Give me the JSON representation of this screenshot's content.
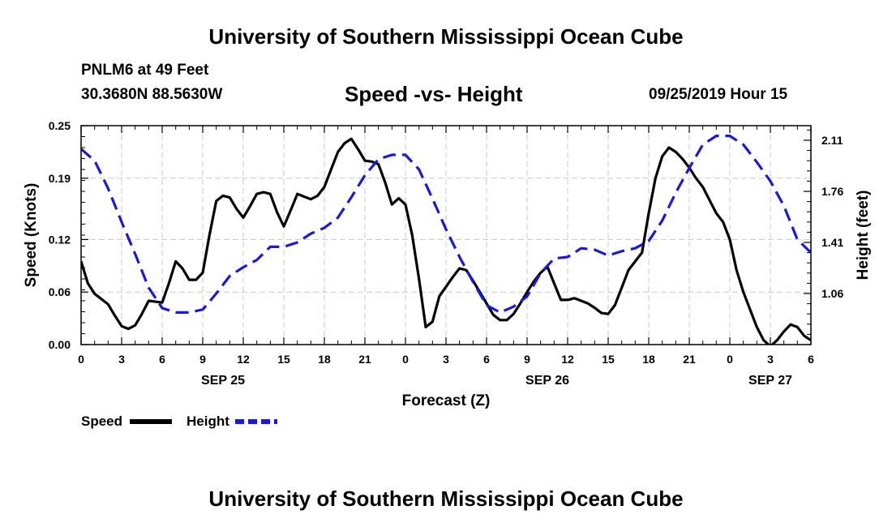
{
  "header": {
    "title_top": "University of Southern Mississippi Ocean Cube",
    "station": "PNLM6 at 49 Feet",
    "coords": "30.3680N 88.5630W",
    "chart_title": "Speed -vs- Height",
    "datetime": "09/25/2019 Hour 15",
    "title_bottom": "University of Southern Mississippi Ocean Cube"
  },
  "colors": {
    "speed": "#000000",
    "height": "#1a1ad6",
    "grid": "#c8c8c8"
  },
  "chart_data": {
    "type": "line",
    "title": "Speed -vs- Height",
    "xlabel": "Forecast (Z)",
    "ylabel_left": "Speed (Knots)",
    "ylabel_right": "Height (feet)",
    "x_range_hours": [
      0,
      54
    ],
    "ylim_left": [
      0,
      0.25
    ],
    "ylim_right": [
      0.71,
      2.21
    ],
    "y_ticks_left": [
      "0.25",
      "0.19",
      "0.12",
      "0.06",
      "0.00"
    ],
    "y_tick_values_left": [
      0.25,
      0.19,
      0.12,
      0.06,
      0.0
    ],
    "y_ticks_right": [
      "2.11",
      "1.76",
      "1.41",
      "1.06"
    ],
    "y_tick_values_right": [
      2.11,
      1.76,
      1.41,
      1.06
    ],
    "x_tick_labels": [
      "0",
      "3",
      "6",
      "9",
      "12",
      "15",
      "18",
      "21",
      "0",
      "3",
      "6",
      "9",
      "12",
      "15",
      "18",
      "21",
      "0",
      "3",
      "6"
    ],
    "date_labels": [
      {
        "label": "SEP 25",
        "hour": 10.5
      },
      {
        "label": "SEP 26",
        "hour": 34.5
      },
      {
        "label": "SEP 27",
        "hour": 51
      }
    ],
    "legend": [
      {
        "name": "Speed",
        "style": "solid"
      },
      {
        "name": "Height",
        "style": "dashed"
      }
    ],
    "series": [
      {
        "name": "Speed",
        "x": [
          0,
          0.5,
          1,
          1.5,
          2,
          2.5,
          3,
          3.5,
          4,
          4.5,
          5,
          5.5,
          6,
          6.5,
          7,
          7.5,
          8,
          8.5,
          9,
          9.5,
          10,
          10.5,
          11,
          11.5,
          12,
          12.5,
          13,
          13.5,
          14,
          14.5,
          15,
          15.5,
          16,
          16.5,
          17,
          17.5,
          18,
          18.5,
          19,
          19.5,
          20,
          20.5,
          21,
          21.5,
          22,
          22.5,
          23,
          23.5,
          24,
          24.5,
          25,
          25.5,
          26,
          26.5,
          27,
          27.5,
          28,
          28.5,
          29,
          29.5,
          30,
          30.5,
          31,
          31.5,
          32,
          32.5,
          33,
          33.5,
          34,
          34.5,
          35,
          35.5,
          36,
          36.5,
          37,
          37.5,
          38,
          38.5,
          39,
          39.5,
          40,
          40.5,
          41,
          41.5,
          42,
          42.5,
          43,
          43.5,
          44,
          44.5,
          45,
          45.5,
          46,
          46.5,
          47,
          47.5,
          48,
          48.5,
          49,
          49.5,
          50,
          50.5,
          51,
          51.5,
          52,
          52.5,
          53,
          53.5,
          54
        ],
        "values": [
          0.095,
          0.07,
          0.058,
          0.052,
          0.046,
          0.033,
          0.021,
          0.018,
          0.022,
          0.035,
          0.05,
          0.049,
          0.048,
          0.07,
          0.095,
          0.087,
          0.074,
          0.074,
          0.082,
          0.125,
          0.164,
          0.17,
          0.168,
          0.155,
          0.145,
          0.158,
          0.172,
          0.174,
          0.172,
          0.151,
          0.135,
          0.153,
          0.172,
          0.169,
          0.166,
          0.17,
          0.18,
          0.2,
          0.22,
          0.23,
          0.235,
          0.223,
          0.21,
          0.209,
          0.206,
          0.185,
          0.16,
          0.167,
          0.16,
          0.125,
          0.075,
          0.02,
          0.026,
          0.055,
          0.066,
          0.077,
          0.087,
          0.085,
          0.073,
          0.06,
          0.047,
          0.034,
          0.028,
          0.028,
          0.035,
          0.047,
          0.06,
          0.072,
          0.082,
          0.089,
          0.07,
          0.051,
          0.051,
          0.053,
          0.05,
          0.047,
          0.042,
          0.036,
          0.035,
          0.045,
          0.065,
          0.085,
          0.095,
          0.105,
          0.15,
          0.19,
          0.215,
          0.225,
          0.22,
          0.212,
          0.202,
          0.19,
          0.18,
          0.165,
          0.15,
          0.14,
          0.12,
          0.085,
          0.06,
          0.04,
          0.02,
          0.005,
          -0.002,
          0.005,
          0.015,
          0.023,
          0.02,
          0.01,
          0.005
        ]
      },
      {
        "name": "Height",
        "x": [
          0,
          1,
          2,
          3,
          4,
          5,
          6,
          7,
          8,
          9,
          10,
          11,
          12,
          13,
          14,
          15,
          16,
          17,
          18,
          19,
          20,
          21,
          22,
          23,
          24,
          25,
          26,
          27,
          28,
          29,
          30,
          31,
          32,
          33,
          34,
          35,
          36,
          37,
          38,
          39,
          40,
          41,
          42,
          43,
          44,
          45,
          46,
          47,
          48,
          49,
          50,
          51,
          52,
          53,
          54
        ],
        "values": [
          2.05,
          1.97,
          1.78,
          1.55,
          1.33,
          1.1,
          0.96,
          0.93,
          0.93,
          0.95,
          1.06,
          1.18,
          1.24,
          1.29,
          1.38,
          1.38,
          1.41,
          1.47,
          1.51,
          1.58,
          1.72,
          1.87,
          1.98,
          2.01,
          2.01,
          1.91,
          1.71,
          1.5,
          1.31,
          1.14,
          0.98,
          0.93,
          0.97,
          1.04,
          1.2,
          1.3,
          1.31,
          1.37,
          1.36,
          1.32,
          1.35,
          1.37,
          1.42,
          1.56,
          1.75,
          1.92,
          2.08,
          2.14,
          2.14,
          2.08,
          1.96,
          1.83,
          1.66,
          1.43,
          1.34
        ]
      }
    ]
  }
}
